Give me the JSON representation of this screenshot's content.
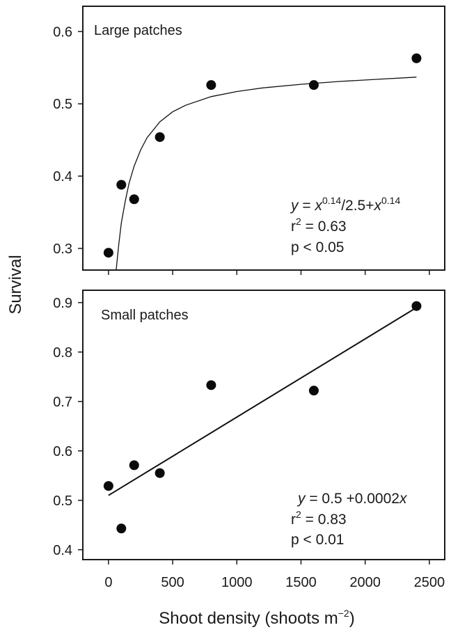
{
  "chart_data": [
    {
      "type": "scatter",
      "title": "Large patches",
      "ylabel": "Survival",
      "xlabel": "Shoot density (shoots m−2)",
      "xlim": [
        -200,
        2620
      ],
      "ylim": [
        0.27,
        0.635
      ],
      "xticks": [
        0,
        500,
        1000,
        1500,
        2000,
        2500
      ],
      "yticks": [
        0.3,
        0.4,
        0.5,
        0.6
      ],
      "ytick_labels": [
        "0.3",
        "0.4",
        "0.5",
        "0.6"
      ],
      "points": [
        {
          "x": 0,
          "y": 0.294
        },
        {
          "x": 100,
          "y": 0.388
        },
        {
          "x": 200,
          "y": 0.368
        },
        {
          "x": 400,
          "y": 0.454
        },
        {
          "x": 800,
          "y": 0.526
        },
        {
          "x": 1600,
          "y": 0.526
        },
        {
          "x": 2400,
          "y": 0.563
        }
      ],
      "fit_curve": [
        {
          "x": 60,
          "y": 0.27
        },
        {
          "x": 80,
          "y": 0.305
        },
        {
          "x": 100,
          "y": 0.335
        },
        {
          "x": 130,
          "y": 0.365
        },
        {
          "x": 160,
          "y": 0.39
        },
        {
          "x": 200,
          "y": 0.414
        },
        {
          "x": 250,
          "y": 0.436
        },
        {
          "x": 300,
          "y": 0.453
        },
        {
          "x": 400,
          "y": 0.475
        },
        {
          "x": 500,
          "y": 0.489
        },
        {
          "x": 600,
          "y": 0.498
        },
        {
          "x": 800,
          "y": 0.51
        },
        {
          "x": 1000,
          "y": 0.517
        },
        {
          "x": 1200,
          "y": 0.522
        },
        {
          "x": 1500,
          "y": 0.527
        },
        {
          "x": 1800,
          "y": 0.531
        },
        {
          "x": 2100,
          "y": 0.534
        },
        {
          "x": 2400,
          "y": 0.537
        }
      ],
      "annotation": {
        "eq_y": "y",
        "eq_mid1": " = ",
        "eq_x1": "x",
        "eq_exp1": "0.14",
        "eq_mid2": "/2.5+",
        "eq_x2": "x",
        "eq_exp2": "0.14",
        "r2_prefix": "r",
        "r2_exp": "2",
        "r2_value": " = 0.63",
        "p_text": "p < 0.05"
      }
    },
    {
      "type": "scatter",
      "title": "Small patches",
      "xlim": [
        -200,
        2620
      ],
      "ylim": [
        0.38,
        0.925
      ],
      "xticks": [
        0,
        500,
        1000,
        1500,
        2000,
        2500
      ],
      "xtick_labels": [
        "0",
        "500",
        "1000",
        "1500",
        "2000",
        "2500"
      ],
      "yticks": [
        0.4,
        0.5,
        0.6,
        0.7,
        0.8,
        0.9
      ],
      "ytick_labels": [
        "0.4",
        "0.5",
        "0.6",
        "0.7",
        "0.8",
        "0.9"
      ],
      "points": [
        {
          "x": 0,
          "y": 0.529
        },
        {
          "x": 100,
          "y": 0.443
        },
        {
          "x": 200,
          "y": 0.571
        },
        {
          "x": 400,
          "y": 0.555
        },
        {
          "x": 800,
          "y": 0.733
        },
        {
          "x": 1600,
          "y": 0.722
        },
        {
          "x": 2400,
          "y": 0.893
        }
      ],
      "fit_line": [
        {
          "x": 0,
          "y": 0.51
        },
        {
          "x": 2400,
          "y": 0.89
        }
      ],
      "annotation": {
        "eq_y": "y",
        "eq_rest": " = 0.5 +0.0002",
        "eq_x": "x",
        "r2_prefix": "r",
        "r2_exp": "2",
        "r2_value": " = 0.83",
        "p_text": "p < 0.01"
      }
    }
  ],
  "labels": {
    "ylabel": "Survival",
    "xlabel_main": "Shoot density (shoots m",
    "xlabel_exp": "−2",
    "xlabel_close": ")"
  }
}
